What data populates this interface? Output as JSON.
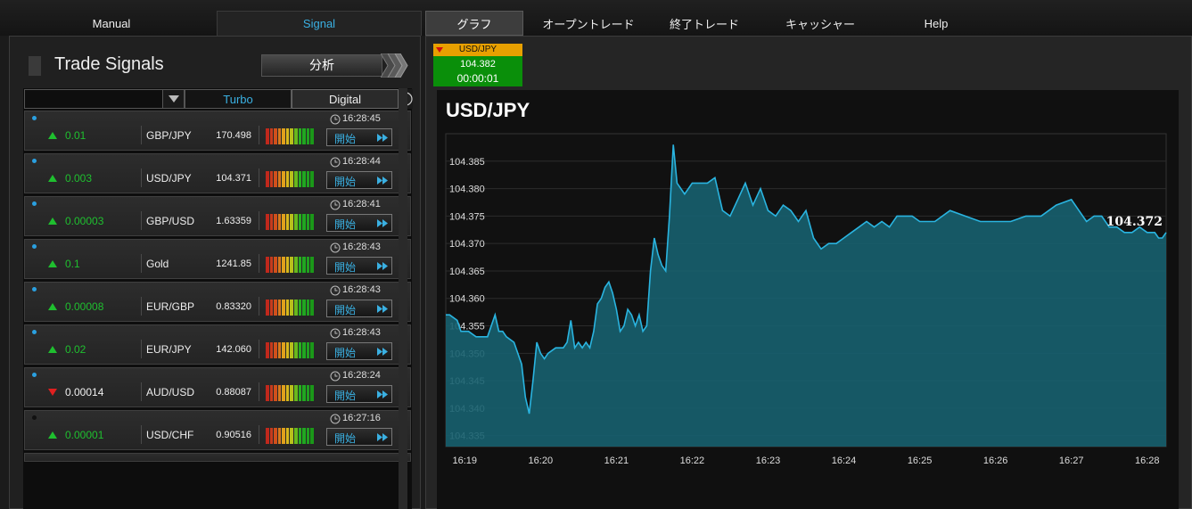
{
  "nav": {
    "tabs": [
      {
        "label": "Manual"
      },
      {
        "label": "Signal"
      },
      {
        "label": "グラフ"
      },
      {
        "label": "オープントレード"
      },
      {
        "label": "終了トレード"
      },
      {
        "label": "キャッシャー"
      },
      {
        "label": "Help"
      }
    ]
  },
  "left": {
    "title": "Trade Signals",
    "analyze_label": "分析",
    "filter": {
      "selected": "",
      "turbo": "Turbo",
      "digital": "Digital",
      "info_icon": "info-icon"
    }
  },
  "signals": [
    {
      "dot": "#2aa0e0",
      "time": "16:28:45",
      "dir": "up",
      "value": "0.01",
      "asset": "GBP/JPY",
      "price": "170.498",
      "start": "開始"
    },
    {
      "dot": "#2aa0e0",
      "time": "16:28:44",
      "dir": "up",
      "value": "0.003",
      "asset": "USD/JPY",
      "price": "104.371",
      "start": "開始"
    },
    {
      "dot": "#2aa0e0",
      "time": "16:28:41",
      "dir": "up",
      "value": "0.00003",
      "asset": "GBP/USD",
      "price": "1.63359",
      "start": "開始"
    },
    {
      "dot": "#2aa0e0",
      "time": "16:28:43",
      "dir": "up",
      "value": "0.1",
      "asset": "Gold",
      "price": "1241.85",
      "start": "開始"
    },
    {
      "dot": "#2aa0e0",
      "time": "16:28:43",
      "dir": "up",
      "value": "0.00008",
      "asset": "EUR/GBP",
      "price": "0.83320",
      "start": "開始"
    },
    {
      "dot": "#2aa0e0",
      "time": "16:28:43",
      "dir": "up",
      "value": "0.02",
      "asset": "EUR/JPY",
      "price": "142.060",
      "start": "開始"
    },
    {
      "dot": "#2aa0e0",
      "time": "16:28:24",
      "dir": "down",
      "value": "0.00014",
      "asset": "AUD/USD",
      "price": "0.88087",
      "start": "開始"
    },
    {
      "dot": "#111111",
      "time": "16:27:16",
      "dir": "up",
      "value": "0.00001",
      "asset": "USD/CHF",
      "price": "0.90516",
      "start": "開始"
    }
  ],
  "meter_colors": [
    "#c0281c",
    "#c83a1c",
    "#d0501c",
    "#d8781c",
    "#e0a01c",
    "#d8b81c",
    "#b8c01c",
    "#68b81c",
    "#28b020",
    "#20a820",
    "#20a020",
    "#1a9818"
  ],
  "ticker": {
    "pair": "USD/JPY",
    "price": "104.382",
    "time": "00:00:01"
  },
  "chart_data": {
    "type": "area",
    "title": "USD/JPY",
    "current_label": "104.372",
    "ylim": [
      104.333,
      104.39
    ],
    "y_ticks": [
      "104.385",
      "104.380",
      "104.375",
      "104.370",
      "104.365",
      "104.360",
      "104.355",
      "104.350",
      "104.345",
      "104.340",
      "104.335"
    ],
    "x_ticks": [
      "16:19",
      "16:20",
      "16:21",
      "16:22",
      "16:23",
      "16:24",
      "16:25",
      "16:26",
      "16:27",
      "16:28"
    ],
    "grid": true,
    "colors": {
      "line": "#2ab4e0",
      "fill": "#17606f"
    },
    "series": [
      {
        "x": [
          18.75,
          18.8,
          18.9,
          18.95,
          19.05,
          19.15,
          19.3,
          19.4,
          19.45,
          19.5,
          19.55,
          19.65,
          19.75,
          19.8,
          19.85,
          19.9,
          19.95,
          20.0,
          20.05,
          20.1,
          20.2,
          20.3,
          20.35,
          20.4,
          20.45,
          20.5,
          20.55,
          20.6,
          20.65,
          20.7,
          20.75,
          20.8,
          20.85,
          20.9,
          20.95,
          21.0,
          21.05,
          21.1,
          21.15,
          21.2,
          21.25,
          21.3,
          21.35,
          21.4,
          21.45,
          21.5,
          21.55,
          21.6,
          21.65,
          21.7,
          21.75,
          21.8,
          21.9,
          22.0,
          22.1,
          22.2,
          22.3,
          22.4,
          22.5,
          22.6,
          22.7,
          22.8,
          22.9,
          23.0,
          23.1,
          23.2,
          23.3,
          23.4,
          23.5,
          23.6,
          23.7,
          23.8,
          23.9,
          24.0,
          24.1,
          24.2,
          24.3,
          24.4,
          24.5,
          24.6,
          24.7,
          24.8,
          24.9,
          25.0,
          25.2,
          25.4,
          25.6,
          25.8,
          26.0,
          26.2,
          26.4,
          26.6,
          26.8,
          27.0,
          27.1,
          27.2,
          27.3,
          27.4,
          27.5,
          27.6,
          27.7,
          27.8,
          27.9,
          28.0,
          28.1,
          28.15,
          28.2,
          28.25
        ],
        "y": [
          104.357,
          104.357,
          104.356,
          104.354,
          104.354,
          104.353,
          104.353,
          104.357,
          104.354,
          104.354,
          104.353,
          104.352,
          104.348,
          104.342,
          104.339,
          104.345,
          104.352,
          104.35,
          104.349,
          104.35,
          104.351,
          104.351,
          104.352,
          104.356,
          104.351,
          104.352,
          104.351,
          104.352,
          104.351,
          104.354,
          104.359,
          104.36,
          104.362,
          104.363,
          104.361,
          104.358,
          104.354,
          104.355,
          104.358,
          104.357,
          104.355,
          104.357,
          104.354,
          104.355,
          104.365,
          104.371,
          104.368,
          104.366,
          104.365,
          104.375,
          104.388,
          104.381,
          104.379,
          104.381,
          104.381,
          104.381,
          104.382,
          104.376,
          104.375,
          104.378,
          104.381,
          104.377,
          104.38,
          104.376,
          104.375,
          104.377,
          104.376,
          104.374,
          104.376,
          104.371,
          104.369,
          104.37,
          104.37,
          104.371,
          104.372,
          104.373,
          104.374,
          104.373,
          104.374,
          104.373,
          104.375,
          104.375,
          104.375,
          104.374,
          104.374,
          104.376,
          104.375,
          104.374,
          104.374,
          104.374,
          104.375,
          104.375,
          104.377,
          104.378,
          104.376,
          104.374,
          104.375,
          104.375,
          104.373,
          104.373,
          104.372,
          104.372,
          104.373,
          104.372,
          104.372,
          104.371,
          104.371,
          104.372
        ]
      }
    ]
  }
}
